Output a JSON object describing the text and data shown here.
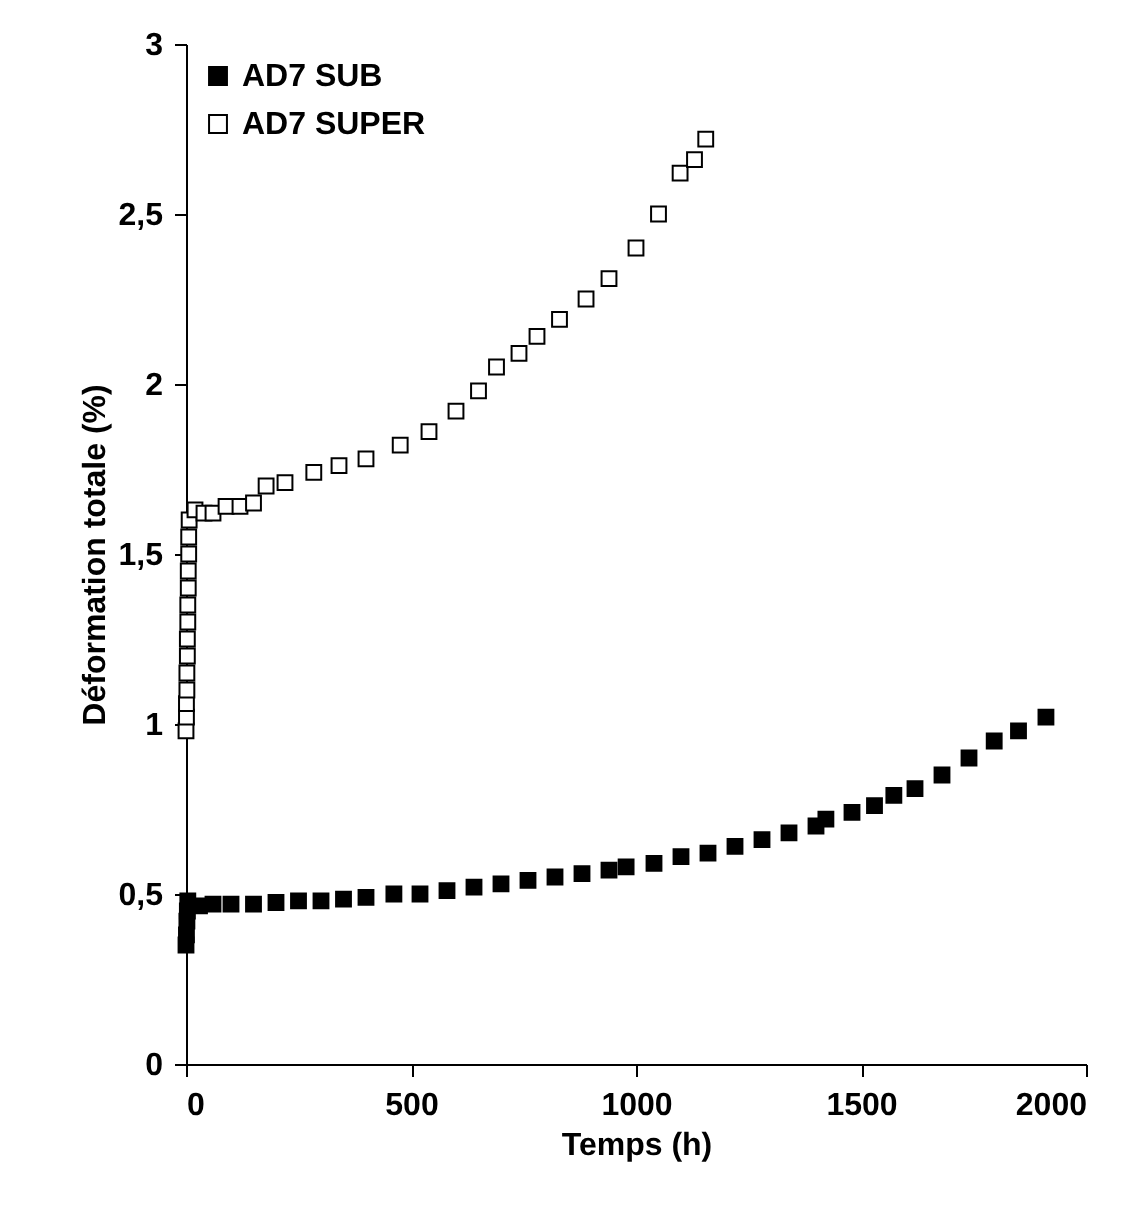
{
  "chart_data": {
    "type": "scatter",
    "xlabel": "Temps (h)",
    "ylabel": "Déformation totale (%)",
    "xlim": [
      0,
      2000
    ],
    "xticks": [
      0,
      500,
      1000,
      1500,
      2000
    ],
    "ylim": [
      0,
      3
    ],
    "yticks": [
      0,
      {
        "value": 0.5,
        "label": "0,5"
      },
      1,
      {
        "value": 1.5,
        "label": "1,5"
      },
      2,
      {
        "value": 2.5,
        "label": "2,5"
      },
      3
    ],
    "grid": false,
    "legend": "top left",
    "marker": "square",
    "series": [
      {
        "name": "AD7 SUB",
        "color": "#000000",
        "x": [
          0,
          1,
          2,
          3,
          4,
          30,
          60,
          100,
          150,
          200,
          250,
          300,
          350,
          400,
          462,
          520,
          580,
          640,
          700,
          760,
          820,
          880,
          940,
          978,
          1040,
          1100,
          1160,
          1220,
          1280,
          1340,
          1400,
          1422,
          1480,
          1530,
          1573,
          1620,
          1680,
          1740,
          1796,
          1850,
          1911
        ],
        "values": [
          0.35,
          0.38,
          0.42,
          0.45,
          0.48,
          0.465,
          0.47,
          0.47,
          0.47,
          0.475,
          0.48,
          0.48,
          0.485,
          0.49,
          0.5,
          0.5,
          0.51,
          0.52,
          0.53,
          0.54,
          0.55,
          0.56,
          0.57,
          0.58,
          0.59,
          0.61,
          0.62,
          0.64,
          0.66,
          0.68,
          0.7,
          0.72,
          0.74,
          0.76,
          0.79,
          0.81,
          0.85,
          0.9,
          0.95,
          0.98,
          1.02
        ]
      },
      {
        "name": "AD7 SUPER",
        "color": "#ffffff",
        "x": [
          0,
          1,
          1,
          2,
          2,
          3,
          3,
          4,
          4,
          5,
          5,
          6,
          6,
          7,
          20,
          40,
          60,
          89,
          120,
          150,
          178,
          220,
          284,
          340,
          400,
          476,
          540,
          600,
          650,
          690,
          740,
          780,
          830,
          889,
          940,
          1000,
          1050,
          1098,
          1130,
          1155
        ],
        "values": [
          0.98,
          1.02,
          1.06,
          1.1,
          1.15,
          1.2,
          1.25,
          1.3,
          1.35,
          1.4,
          1.45,
          1.5,
          1.55,
          1.6,
          1.63,
          1.62,
          1.62,
          1.64,
          1.64,
          1.65,
          1.7,
          1.71,
          1.74,
          1.76,
          1.78,
          1.82,
          1.86,
          1.92,
          1.98,
          2.05,
          2.09,
          2.14,
          2.19,
          2.25,
          2.31,
          2.4,
          2.5,
          2.62,
          2.66,
          2.72
        ]
      }
    ]
  }
}
